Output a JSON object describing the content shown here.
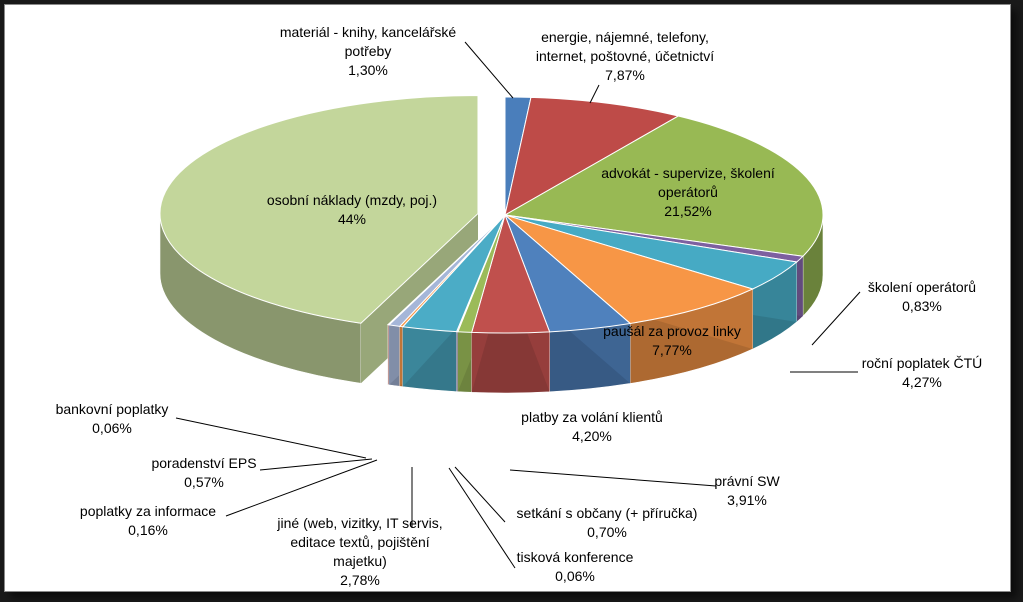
{
  "chart_data": {
    "type": "pie",
    "style": "3d-exploded",
    "title": "",
    "slices": [
      {
        "label_lines": [
          "materiál - knihy, kancelářské",
          "potřeby"
        ],
        "value_text": "1,30%",
        "value": 1.3,
        "color": "#4a7ebb"
      },
      {
        "label_lines": [
          "energie, nájemné, telefony,",
          "internet, poštovné, účetnictví"
        ],
        "value_text": "7,87%",
        "value": 7.87,
        "color": "#be4b48"
      },
      {
        "label_lines": [
          "advokát - supervize, školení",
          "operátorů"
        ],
        "value_text": "21,52%",
        "value": 21.52,
        "color": "#98b954"
      },
      {
        "label_lines": [
          "školení operátorů"
        ],
        "value_text": "0,83%",
        "value": 0.83,
        "color": "#7d60a0"
      },
      {
        "label_lines": [
          "roční poplatek ČTÚ"
        ],
        "value_text": "4,27%",
        "value": 4.27,
        "color": "#46aac4"
      },
      {
        "label_lines": [
          "paušál za provoz linky"
        ],
        "value_text": "7,77%",
        "value": 7.77,
        "color": "#f79646"
      },
      {
        "label_lines": [
          "platby za volání klientů"
        ],
        "value_text": "4,20%",
        "value": 4.2,
        "color": "#4f81bd"
      },
      {
        "label_lines": [
          "právní SW"
        ],
        "value_text": "3,91%",
        "value": 3.91,
        "color": "#c0504d"
      },
      {
        "label_lines": [
          "setkání s občany (+ příručka)"
        ],
        "value_text": "0,70%",
        "value": 0.7,
        "color": "#9bbb59"
      },
      {
        "label_lines": [
          "tisková konference"
        ],
        "value_text": "0,06%",
        "value": 0.06,
        "color": "#8064a2"
      },
      {
        "label_lines": [
          "jiné (web, vizitky, IT servis,",
          "editace textů, pojištění",
          "majetku)"
        ],
        "value_text": "2,78%",
        "value": 2.78,
        "color": "#4bacc6"
      },
      {
        "label_lines": [
          "poplatky za informace"
        ],
        "value_text": "0,16%",
        "value": 0.16,
        "color": "#f79646"
      },
      {
        "label_lines": [
          "poradenství EPS"
        ],
        "value_text": "0,57%",
        "value": 0.57,
        "color": "#a5b6d8"
      },
      {
        "label_lines": [
          "bankovní poplatky"
        ],
        "value_text": "0,06%",
        "value": 0.06,
        "color": "#d99694"
      },
      {
        "label_lines": [
          "osobní náklady (mzdy, poj.)"
        ],
        "value_text": "44%",
        "value": 44.0,
        "color": "#c3d69b"
      }
    ]
  }
}
